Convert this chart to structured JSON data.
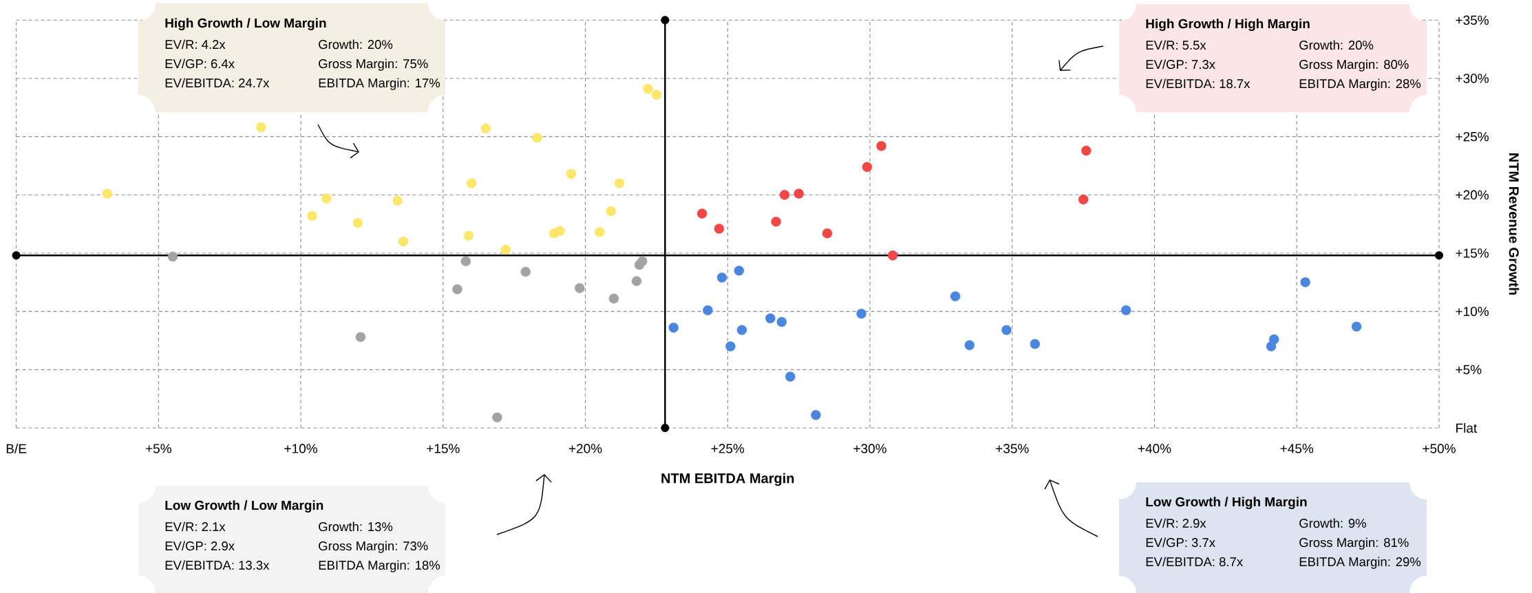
{
  "chart_data": {
    "type": "scatter",
    "xlabel": "NTM EBITDA Margin",
    "ylabel": "NTM Revenue Growth",
    "xlim": [
      0,
      50
    ],
    "ylim": [
      0,
      35
    ],
    "xticks": [
      {
        "value": 0,
        "label": "B/E"
      },
      {
        "value": 5,
        "label": "+5%"
      },
      {
        "value": 10,
        "label": "+10%"
      },
      {
        "value": 15,
        "label": "+15%"
      },
      {
        "value": 20,
        "label": "+20%"
      },
      {
        "value": 25,
        "label": "+25%"
      },
      {
        "value": 30,
        "label": "+30%"
      },
      {
        "value": 35,
        "label": "+35%"
      },
      {
        "value": 40,
        "label": "+40%"
      },
      {
        "value": 45,
        "label": "+45%"
      },
      {
        "value": 50,
        "label": "+50%"
      }
    ],
    "yticks": [
      {
        "value": 0,
        "label": "Flat"
      },
      {
        "value": 5,
        "label": "+5%"
      },
      {
        "value": 10,
        "label": "+10%"
      },
      {
        "value": 15,
        "label": "+15%"
      },
      {
        "value": 20,
        "label": "+20%"
      },
      {
        "value": 25,
        "label": "+25%"
      },
      {
        "value": 30,
        "label": "+30%"
      },
      {
        "value": 35,
        "label": "+35%"
      }
    ],
    "grid": true,
    "marker": "circle",
    "series": [
      {
        "color": "#fce76c",
        "x": [
          3.2,
          8.6,
          10.4,
          10.9,
          12.0,
          13.4,
          13.6,
          15.9,
          16.0,
          16.5,
          17.2,
          18.3,
          18.9,
          19.1,
          19.5,
          20.5,
          20.9,
          21.2,
          22.2,
          22.5
        ],
        "values": [
          20.1,
          25.8,
          18.2,
          19.7,
          17.6,
          19.5,
          16.0,
          16.5,
          21.0,
          25.7,
          15.3,
          24.9,
          16.7,
          16.9,
          21.8,
          16.8,
          18.6,
          21.0,
          29.1,
          28.6
        ]
      },
      {
        "color": "#a3a3a3",
        "x": [
          5.5,
          15.8,
          15.5,
          17.9,
          19.8,
          21.0,
          21.8,
          21.9,
          22.0,
          12.1,
          16.9
        ],
        "values": [
          14.7,
          14.3,
          11.9,
          13.4,
          12.0,
          11.1,
          12.6,
          14.0,
          14.3,
          7.8,
          0.9
        ]
      },
      {
        "color": "#f24747",
        "x": [
          24.1,
          24.7,
          26.7,
          27.0,
          27.5,
          28.5,
          29.9,
          30.4,
          30.8,
          37.5,
          37.6
        ],
        "values": [
          18.4,
          17.1,
          17.7,
          20.0,
          20.1,
          16.7,
          22.4,
          24.2,
          14.8,
          19.6,
          23.8
        ]
      },
      {
        "color": "#4a86de",
        "x": [
          23.1,
          24.3,
          24.8,
          25.4,
          25.1,
          25.5,
          26.5,
          26.9,
          27.2,
          28.1,
          29.7,
          33.0,
          33.5,
          34.8,
          35.8,
          39.0,
          44.2,
          44.1,
          45.3,
          47.1
        ],
        "values": [
          8.6,
          10.1,
          12.9,
          13.5,
          7.0,
          8.4,
          9.4,
          9.1,
          4.4,
          1.1,
          9.8,
          11.3,
          7.1,
          8.4,
          7.2,
          10.1,
          7.6,
          7.0,
          12.5,
          8.7
        ]
      }
    ],
    "ref_lines": [
      {
        "axis": "x",
        "value": 22.8,
        "color": "#000000"
      },
      {
        "axis": "y",
        "value": 14.8,
        "color": "#000000"
      }
    ],
    "annotations": [
      "High Growth / Low Margin",
      "EV/R: 4.2x",
      "Growth: 20%",
      "EV/GP: 6.4x",
      "Gross Margin: 75%",
      "EV/EBITDA: 24.7x",
      "EBITDA Margin: 17%",
      "High Growth / High Margin",
      "EV/R: 5.5x",
      "Growth: 20%",
      "EV/GP: 7.3x",
      "Gross Margin: 80%",
      "EV/EBITDA: 18.7x",
      "EBITDA Margin: 28%",
      "Low Growth / Low Margin",
      "EV/R: 2.1x",
      "Growth: 13%",
      "EV/GP: 2.9x",
      "Gross Margin: 73%",
      "EV/EBITDA: 13.3x",
      "EBITDA Margin: 18%",
      "Low Growth / High Margin",
      "EV/R: 2.9x",
      "Growth: 9%",
      "EV/GP: 3.7x",
      "Gross Margin: 81%",
      "EV/EBITDA: 8.7x",
      "EBITDA Margin: 29%"
    ]
  }
}
